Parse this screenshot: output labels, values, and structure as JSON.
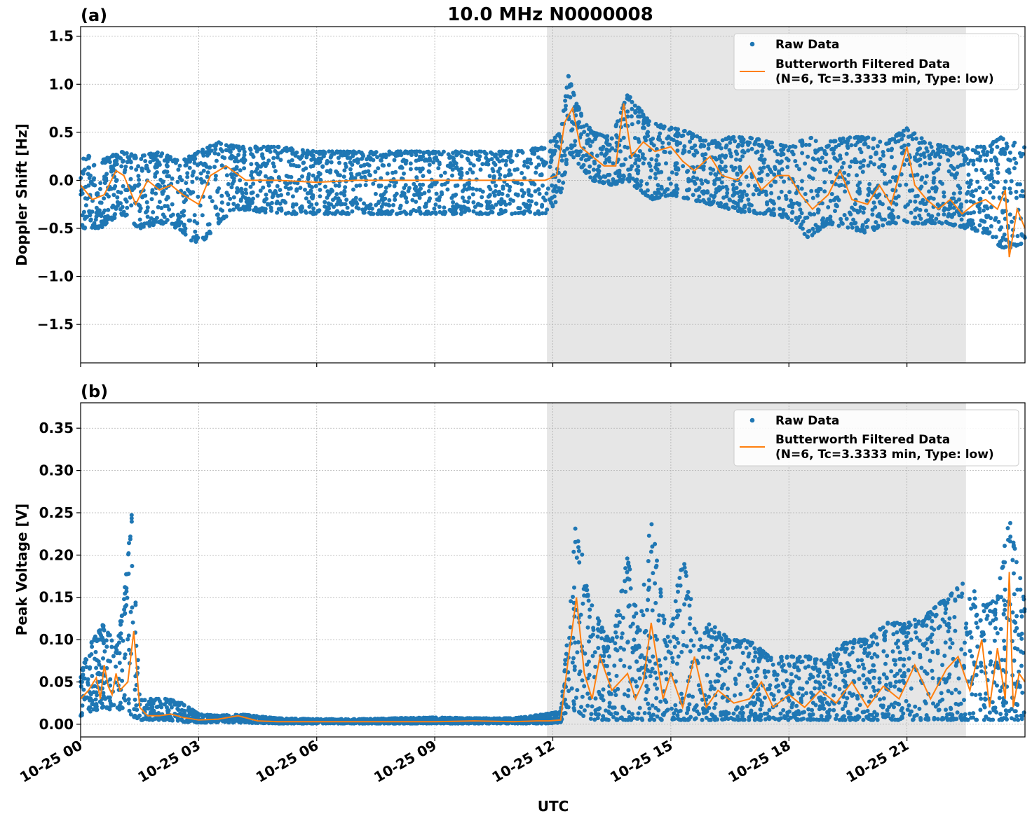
{
  "figure": {
    "title": "10.0 MHz N0000008",
    "xlabel": "UTC",
    "x_tick_labels": [
      "10-25 00",
      "10-25 03",
      "10-25 06",
      "10-25 09",
      "10-25 12",
      "10-25 15",
      "10-25 18",
      "10-25 21"
    ],
    "colors": {
      "raw": "#1f77b4",
      "filtered": "#ff7f0e",
      "shade": "#e6e6e6",
      "grid": "#b0b0b0"
    }
  },
  "chart_data": [
    {
      "panel": "(a)",
      "type": "scatter",
      "ylabel": "Doppler Shift [Hz]",
      "ylim": [
        -1.9,
        1.6
      ],
      "y_ticks": [
        1.5,
        1.0,
        0.5,
        0.0,
        -0.5,
        -1.0,
        -1.5
      ],
      "y_tick_labels": [
        "1.5",
        "1.0",
        "0.5",
        "0.0",
        "−0.5",
        "−1.0",
        "−1.5"
      ],
      "xlim_hours": [
        0,
        24
      ],
      "grid": true,
      "shaded_span_hours": [
        11.85,
        22.5
      ],
      "legend": {
        "placement": "upper right",
        "entries": [
          "Raw Data",
          "Butterworth Filtered Data",
          "(N=6, Tc=3.3333 min, Type: low)"
        ]
      },
      "series": [
        {
          "name": "Raw Data",
          "kind": "scatter-band",
          "x_hours": [
            0,
            0.5,
            1.0,
            1.5,
            2.0,
            2.5,
            3.0,
            3.5,
            4.0,
            5.0,
            6.0,
            7.0,
            8.0,
            9.0,
            10.0,
            11.0,
            11.8,
            12.2,
            12.4,
            12.6,
            13.0,
            13.5,
            13.9,
            14.5,
            15.0,
            15.5,
            16.0,
            16.5,
            17.0,
            17.5,
            18.0,
            18.5,
            19.0,
            19.5,
            20.0,
            20.5,
            21.0,
            21.5,
            22.0,
            22.5,
            23.0,
            23.4,
            23.7,
            24.0
          ],
          "y_low": [
            -0.5,
            -0.5,
            -0.35,
            -0.5,
            -0.45,
            -0.5,
            -0.7,
            -0.45,
            -0.3,
            -0.35,
            -0.35,
            -0.35,
            -0.35,
            -0.35,
            -0.35,
            -0.35,
            -0.35,
            -0.2,
            0.3,
            0.2,
            0.0,
            -0.05,
            0.0,
            -0.2,
            -0.15,
            -0.2,
            -0.25,
            -0.3,
            -0.35,
            -0.35,
            -0.4,
            -0.6,
            -0.45,
            -0.5,
            -0.55,
            -0.45,
            -0.45,
            -0.45,
            -0.45,
            -0.5,
            -0.55,
            -0.7,
            -0.7,
            -0.65
          ],
          "y_high": [
            0.3,
            0.2,
            0.3,
            0.25,
            0.3,
            0.2,
            0.3,
            0.4,
            0.35,
            0.35,
            0.3,
            0.3,
            0.3,
            0.3,
            0.3,
            0.3,
            0.35,
            0.5,
            1.1,
            0.8,
            0.5,
            0.45,
            0.9,
            0.6,
            0.55,
            0.5,
            0.4,
            0.45,
            0.45,
            0.4,
            0.35,
            0.45,
            0.4,
            0.45,
            0.45,
            0.4,
            0.55,
            0.4,
            0.35,
            0.35,
            0.35,
            0.45,
            0.4,
            0.35
          ]
        },
        {
          "name": "Butterworth Filtered Data",
          "kind": "line",
          "x_hours": [
            0,
            0.3,
            0.6,
            0.9,
            1.1,
            1.4,
            1.7,
            2.0,
            2.3,
            2.6,
            3.0,
            3.3,
            3.7,
            4.2,
            5.0,
            6.0,
            7.0,
            8.0,
            9.0,
            10.0,
            11.0,
            11.8,
            12.1,
            12.3,
            12.5,
            12.7,
            13.0,
            13.3,
            13.6,
            13.8,
            14.0,
            14.3,
            14.6,
            15.0,
            15.3,
            15.6,
            16.0,
            16.3,
            16.7,
            17.0,
            17.3,
            17.7,
            18.0,
            18.3,
            18.6,
            19.0,
            19.3,
            19.6,
            20.0,
            20.3,
            20.6,
            21.0,
            21.2,
            21.5,
            21.8,
            22.1,
            22.4,
            22.7,
            23.0,
            23.3,
            23.5,
            23.6,
            23.8,
            24.0
          ],
          "y": [
            -0.05,
            -0.2,
            -0.15,
            0.1,
            0.05,
            -0.25,
            0.0,
            -0.1,
            -0.05,
            -0.15,
            -0.25,
            0.05,
            0.15,
            0.0,
            0.0,
            -0.02,
            0.0,
            0.0,
            0.0,
            0.0,
            0.0,
            0.0,
            0.05,
            0.6,
            0.75,
            0.35,
            0.25,
            0.15,
            0.15,
            0.8,
            0.25,
            0.4,
            0.3,
            0.35,
            0.2,
            0.1,
            0.25,
            0.05,
            0.0,
            0.15,
            -0.1,
            0.05,
            0.05,
            -0.15,
            -0.3,
            -0.15,
            0.1,
            -0.2,
            -0.25,
            -0.05,
            -0.25,
            0.35,
            -0.05,
            -0.2,
            -0.3,
            -0.2,
            -0.35,
            -0.25,
            -0.2,
            -0.3,
            -0.1,
            -0.8,
            -0.3,
            -0.5
          ]
        }
      ]
    },
    {
      "panel": "(b)",
      "type": "scatter",
      "ylabel": "Peak Voltage [V]",
      "ylim": [
        -0.015,
        0.38
      ],
      "y_ticks": [
        0.35,
        0.3,
        0.25,
        0.2,
        0.15,
        0.1,
        0.05,
        0.0
      ],
      "y_tick_labels": [
        "0.35",
        "0.30",
        "0.25",
        "0.20",
        "0.15",
        "0.10",
        "0.05",
        "0.00"
      ],
      "xlim_hours": [
        0,
        24
      ],
      "grid": true,
      "shaded_span_hours": [
        11.85,
        22.5
      ],
      "legend": {
        "placement": "upper right",
        "entries": [
          "Raw Data",
          "Butterworth Filtered Data",
          "(N=6, Tc=3.3333 min, Type: low)"
        ]
      },
      "series": [
        {
          "name": "Raw Data",
          "kind": "scatter-band",
          "x_hours": [
            0,
            0.3,
            0.6,
            0.9,
            1.1,
            1.3,
            1.5,
            1.8,
            2.2,
            2.6,
            3.0,
            3.5,
            4.0,
            5.0,
            6.0,
            7.0,
            8.0,
            9.0,
            10.0,
            11.0,
            11.8,
            12.2,
            12.4,
            12.6,
            12.9,
            13.2,
            13.5,
            13.9,
            14.2,
            14.5,
            14.9,
            15.3,
            15.7,
            16.0,
            16.5,
            17.0,
            17.5,
            18.0,
            18.5,
            19.0,
            19.5,
            20.0,
            20.5,
            21.0,
            21.5,
            22.0,
            22.5,
            23.0,
            23.3,
            23.6,
            24.0
          ],
          "y_low": [
            0.01,
            0.015,
            0.02,
            0.015,
            0.02,
            0.01,
            0.005,
            0.005,
            0.005,
            0.003,
            0.002,
            0.002,
            0.002,
            0.001,
            0.001,
            0.001,
            0.001,
            0.001,
            0.001,
            0.001,
            0.001,
            0.002,
            0.02,
            0.015,
            0.005,
            0.005,
            0.005,
            0.005,
            0.005,
            0.005,
            0.005,
            0.005,
            0.005,
            0.005,
            0.005,
            0.005,
            0.005,
            0.005,
            0.005,
            0.005,
            0.005,
            0.005,
            0.005,
            0.005,
            0.005,
            0.005,
            0.005,
            0.005,
            0.005,
            0.005,
            0.005
          ],
          "y_high": [
            0.06,
            0.1,
            0.12,
            0.09,
            0.15,
            0.25,
            0.03,
            0.03,
            0.03,
            0.025,
            0.012,
            0.01,
            0.012,
            0.007,
            0.006,
            0.006,
            0.007,
            0.008,
            0.007,
            0.007,
            0.012,
            0.015,
            0.12,
            0.25,
            0.15,
            0.12,
            0.1,
            0.2,
            0.11,
            0.25,
            0.1,
            0.2,
            0.1,
            0.12,
            0.1,
            0.1,
            0.08,
            0.08,
            0.08,
            0.08,
            0.1,
            0.1,
            0.12,
            0.12,
            0.13,
            0.15,
            0.17,
            0.14,
            0.15,
            0.25,
            0.14
          ]
        },
        {
          "name": "Butterworth Filtered Data",
          "kind": "line",
          "x_hours": [
            0,
            0.2,
            0.4,
            0.5,
            0.6,
            0.7,
            0.8,
            0.9,
            1.0,
            1.2,
            1.35,
            1.5,
            1.7,
            2.0,
            2.3,
            2.6,
            3.0,
            3.5,
            4.0,
            4.5,
            5.0,
            6.0,
            7.0,
            8.0,
            9.0,
            10.0,
            11.0,
            11.6,
            11.9,
            12.2,
            12.4,
            12.6,
            12.8,
            13.0,
            13.2,
            13.5,
            13.9,
            14.1,
            14.3,
            14.5,
            14.8,
            15.0,
            15.3,
            15.6,
            15.9,
            16.2,
            16.6,
            17.0,
            17.3,
            17.6,
            18.0,
            18.4,
            18.8,
            19.2,
            19.6,
            20.0,
            20.4,
            20.8,
            21.2,
            21.6,
            22.0,
            22.3,
            22.6,
            22.9,
            23.1,
            23.3,
            23.5,
            23.6,
            23.7,
            23.85,
            24.0
          ],
          "y": [
            0.03,
            0.04,
            0.055,
            0.03,
            0.07,
            0.045,
            0.035,
            0.06,
            0.04,
            0.05,
            0.11,
            0.02,
            0.01,
            0.01,
            0.012,
            0.008,
            0.005,
            0.006,
            0.01,
            0.004,
            0.003,
            0.003,
            0.003,
            0.003,
            0.003,
            0.004,
            0.003,
            0.004,
            0.004,
            0.005,
            0.08,
            0.15,
            0.06,
            0.03,
            0.08,
            0.04,
            0.06,
            0.03,
            0.05,
            0.12,
            0.03,
            0.06,
            0.02,
            0.08,
            0.02,
            0.04,
            0.025,
            0.03,
            0.05,
            0.02,
            0.035,
            0.02,
            0.04,
            0.025,
            0.05,
            0.02,
            0.045,
            0.03,
            0.07,
            0.03,
            0.065,
            0.08,
            0.04,
            0.1,
            0.02,
            0.09,
            0.03,
            0.18,
            0.02,
            0.06,
            0.05
          ]
        }
      ]
    }
  ]
}
